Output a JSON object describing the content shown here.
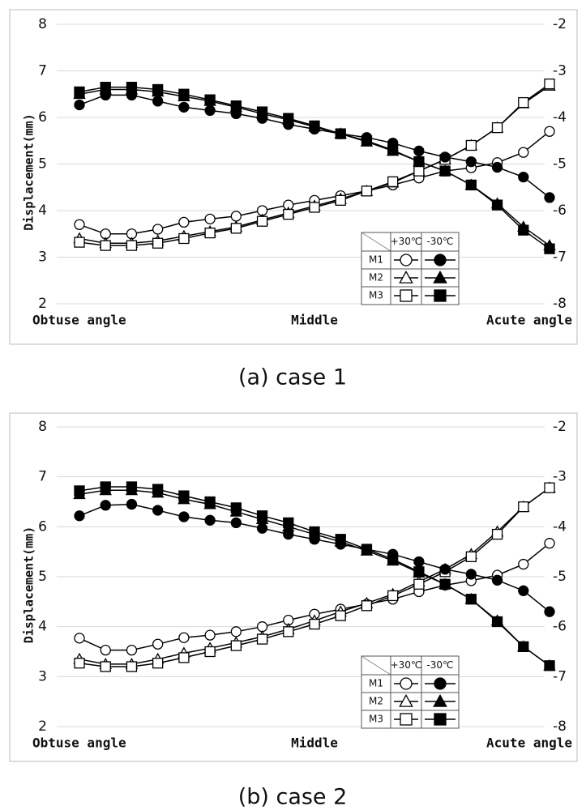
{
  "chart_data": [
    {
      "type": "line",
      "caption": "(a) case 1",
      "y_label": "Displacement(mm)",
      "categories": [
        "Obtuse angle",
        null,
        null,
        null,
        null,
        null,
        null,
        null,
        null,
        "Middle",
        null,
        null,
        null,
        null,
        null,
        null,
        null,
        null,
        "Acute angle"
      ],
      "ylim": [
        2,
        8
      ],
      "yticks": [
        2,
        3,
        4,
        5,
        6,
        7,
        8
      ],
      "y2lim": [
        -8,
        -2
      ],
      "y2ticks": [
        -2,
        -3,
        -4,
        -5,
        -6,
        -7,
        -8
      ],
      "grid": true,
      "legend_columns": [
        "+30℃",
        "-30℃"
      ],
      "series": [
        {
          "name": "M1",
          "marker": "circle",
          "filled": false,
          "color": "#000000",
          "values": [
            3.7,
            3.5,
            3.5,
            3.6,
            3.75,
            3.82,
            3.88,
            4.0,
            4.12,
            4.22,
            4.32,
            4.42,
            4.55,
            4.7,
            4.85,
            4.92,
            5.03,
            5.25,
            5.7
          ]
        },
        {
          "name": "M2",
          "marker": "triangle",
          "filled": false,
          "color": "#000000",
          "values": [
            3.4,
            3.3,
            3.3,
            3.35,
            3.45,
            3.55,
            3.65,
            3.8,
            3.95,
            4.1,
            4.25,
            4.42,
            4.6,
            4.85,
            5.1,
            5.4,
            5.78,
            6.3,
            6.68
          ]
        },
        {
          "name": "M3",
          "marker": "square",
          "filled": false,
          "color": "#000000",
          "values": [
            3.32,
            3.25,
            3.25,
            3.3,
            3.4,
            3.52,
            3.62,
            3.77,
            3.92,
            4.07,
            4.22,
            4.42,
            4.62,
            4.85,
            5.1,
            5.4,
            5.78,
            6.32,
            6.72
          ]
        },
        {
          "name": "M1",
          "marker": "circle",
          "filled": true,
          "color": "#000000",
          "axis": "y2",
          "values": [
            -3.73,
            -3.52,
            -3.52,
            -3.65,
            -3.78,
            -3.85,
            -3.92,
            -4.02,
            -4.15,
            -4.25,
            -4.35,
            -4.43,
            -4.55,
            -4.72,
            -4.85,
            -4.95,
            -5.07,
            -5.28,
            -5.72
          ]
        },
        {
          "name": "M2",
          "marker": "triangle",
          "filled": true,
          "color": "#000000",
          "axis": "y2",
          "values": [
            -3.5,
            -3.4,
            -3.4,
            -3.45,
            -3.55,
            -3.65,
            -3.78,
            -3.92,
            -4.05,
            -4.2,
            -4.35,
            -4.52,
            -4.72,
            -4.95,
            -5.15,
            -5.45,
            -5.85,
            -6.35,
            -6.75
          ]
        },
        {
          "name": "M3",
          "marker": "square",
          "filled": true,
          "color": "#000000",
          "axis": "y2",
          "values": [
            -3.45,
            -3.35,
            -3.35,
            -3.4,
            -3.5,
            -3.62,
            -3.75,
            -3.88,
            -4.02,
            -4.18,
            -4.35,
            -4.5,
            -4.7,
            -4.95,
            -5.15,
            -5.45,
            -5.88,
            -6.42,
            -6.82
          ]
        }
      ]
    },
    {
      "type": "line",
      "caption": "(b) case 2",
      "y_label": "Displacement(mm)",
      "categories": [
        "Obtuse angle",
        null,
        null,
        null,
        null,
        null,
        null,
        null,
        null,
        "Middle",
        null,
        null,
        null,
        null,
        null,
        null,
        null,
        null,
        "Acute angle"
      ],
      "ylim": [
        2,
        8
      ],
      "yticks": [
        2,
        3,
        4,
        5,
        6,
        7,
        8
      ],
      "y2lim": [
        -8,
        -2
      ],
      "y2ticks": [
        -2,
        -3,
        -4,
        -5,
        -6,
        -7,
        -8
      ],
      "grid": true,
      "legend_columns": [
        "+30℃",
        "-30℃"
      ],
      "series": [
        {
          "name": "M1",
          "marker": "circle",
          "filled": false,
          "color": "#000000",
          "values": [
            3.77,
            3.53,
            3.53,
            3.65,
            3.78,
            3.83,
            3.9,
            4.0,
            4.13,
            4.25,
            4.35,
            4.45,
            4.55,
            4.7,
            4.83,
            4.92,
            5.03,
            5.25,
            5.67
          ]
        },
        {
          "name": "M2",
          "marker": "triangle",
          "filled": false,
          "color": "#000000",
          "values": [
            3.35,
            3.25,
            3.25,
            3.35,
            3.47,
            3.57,
            3.68,
            3.8,
            3.95,
            4.12,
            4.3,
            4.47,
            4.65,
            4.9,
            5.15,
            5.45,
            5.9,
            6.4,
            6.78
          ]
        },
        {
          "name": "M3",
          "marker": "square",
          "filled": false,
          "color": "#000000",
          "values": [
            3.27,
            3.2,
            3.2,
            3.27,
            3.38,
            3.5,
            3.62,
            3.75,
            3.9,
            4.05,
            4.22,
            4.42,
            4.62,
            4.85,
            5.1,
            5.4,
            5.85,
            6.4,
            6.78
          ]
        },
        {
          "name": "M1",
          "marker": "circle",
          "filled": true,
          "color": "#000000",
          "axis": "y2",
          "values": [
            -3.78,
            -3.57,
            -3.55,
            -3.67,
            -3.8,
            -3.87,
            -3.92,
            -4.03,
            -4.15,
            -4.25,
            -4.35,
            -4.45,
            -4.55,
            -4.7,
            -4.85,
            -4.95,
            -5.07,
            -5.28,
            -5.7
          ]
        },
        {
          "name": "M2",
          "marker": "triangle",
          "filled": true,
          "color": "#000000",
          "axis": "y2",
          "values": [
            -3.35,
            -3.27,
            -3.27,
            -3.32,
            -3.45,
            -3.55,
            -3.7,
            -3.85,
            -4.0,
            -4.15,
            -4.3,
            -4.48,
            -4.68,
            -4.92,
            -5.15,
            -5.45,
            -5.88,
            -6.4,
            -6.78
          ]
        },
        {
          "name": "M3",
          "marker": "square",
          "filled": true,
          "color": "#000000",
          "axis": "y2",
          "values": [
            -3.28,
            -3.2,
            -3.2,
            -3.25,
            -3.38,
            -3.5,
            -3.62,
            -3.78,
            -3.92,
            -4.1,
            -4.25,
            -4.45,
            -4.65,
            -4.9,
            -5.15,
            -5.45,
            -5.9,
            -6.4,
            -6.78
          ]
        }
      ]
    }
  ]
}
